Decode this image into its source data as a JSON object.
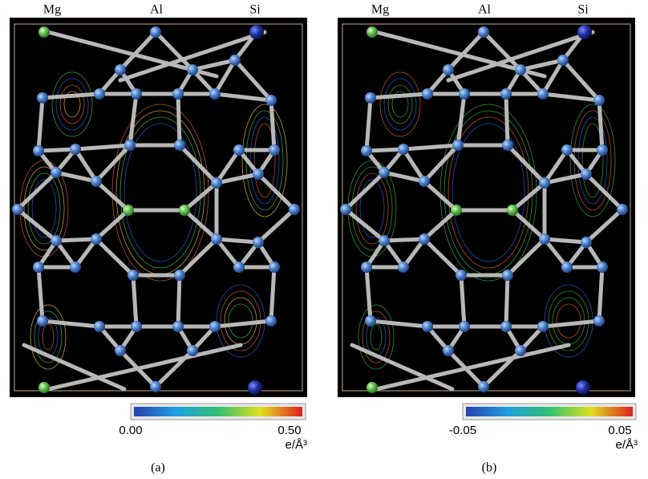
{
  "panels": [
    {
      "labels": [
        "Mg",
        "Al",
        "Si"
      ],
      "colorbar": {
        "min": "0.00",
        "max": "0.50",
        "unit": "e/Å³"
      },
      "caption": "(a)"
    },
    {
      "labels": [
        "Mg",
        "Al",
        "Si"
      ],
      "colorbar": {
        "min": "-0.05",
        "max": "0.05",
        "unit": "e/Å³"
      },
      "caption": "(b)"
    }
  ]
}
